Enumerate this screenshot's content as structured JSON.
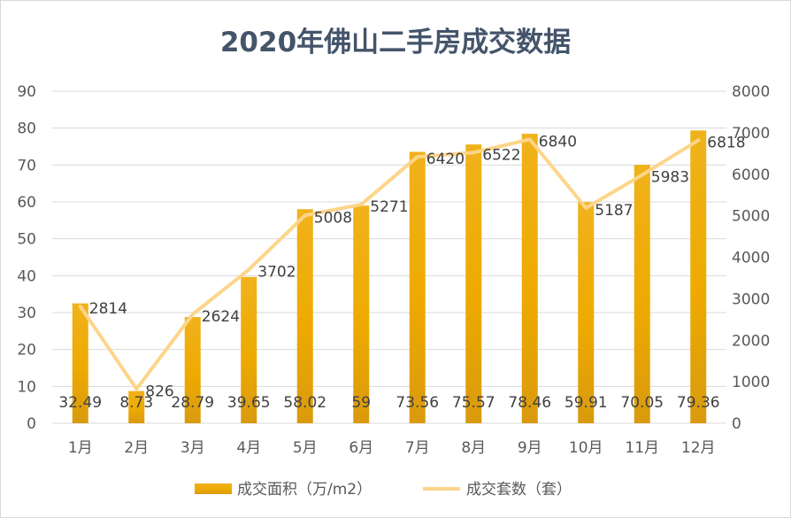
{
  "chart_data": {
    "type": "bar",
    "title": "2020年佛山二手房成交数据",
    "categories": [
      "1月",
      "2月",
      "3月",
      "4月",
      "5月",
      "6月",
      "7月",
      "8月",
      "9月",
      "10月",
      "11月",
      "12月"
    ],
    "series": [
      {
        "name": "成交面积（万/m2）",
        "type": "bar",
        "axis": "left",
        "values": [
          32.49,
          8.73,
          28.79,
          39.65,
          58.02,
          59,
          73.56,
          75.57,
          78.46,
          59.91,
          70.05,
          79.36
        ],
        "labels": [
          "32.49",
          "8.73",
          "28.79",
          "39.65",
          "58.02",
          "59",
          "73.56",
          "75.57",
          "78.46",
          "59.91",
          "70.05",
          "79.36"
        ]
      },
      {
        "name": "成交套数（套）",
        "type": "line",
        "axis": "right",
        "values": [
          2814,
          826,
          2624,
          3702,
          5008,
          5271,
          6420,
          6522,
          6840,
          5187,
          5983,
          6818
        ],
        "labels": [
          "2814",
          "826",
          "2624",
          "3702",
          "5008",
          "5271",
          "6420",
          "6522",
          "6840",
          "5187",
          "5983",
          "6818"
        ]
      }
    ],
    "y_left": {
      "min": 0,
      "max": 90,
      "ticks": [
        "0",
        "10",
        "20",
        "30",
        "40",
        "50",
        "60",
        "70",
        "80",
        "90"
      ]
    },
    "y_right": {
      "min": 0,
      "max": 8000,
      "ticks": [
        "0",
        "1000",
        "2000",
        "3000",
        "4000",
        "5000",
        "6000",
        "7000",
        "8000"
      ]
    },
    "grid": true,
    "legend_position": "bottom",
    "colors": {
      "bar_top": "#f0b21c",
      "bar_mid": "#eeaa00",
      "bar_bottom": "#d99a0e",
      "line": "#fdd58a",
      "grid": "#d9d9d9",
      "title": "#44546a"
    }
  }
}
